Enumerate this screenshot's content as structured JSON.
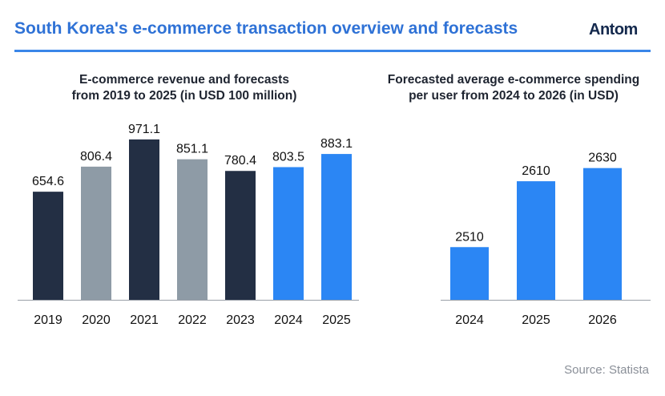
{
  "header": {
    "title": "South Korea's e-commerce transaction overview and forecasts",
    "logo_text": "Antom"
  },
  "chart_data": [
    {
      "type": "bar",
      "title_line1": "E-commerce revenue and forecasts",
      "title_line2": "from 2019 to 2025 (in USD 100 million)",
      "categories": [
        "2019",
        "2020",
        "2021",
        "2022",
        "2023",
        "2024",
        "2025"
      ],
      "values": [
        654.6,
        806.4,
        971.1,
        851.1,
        780.4,
        803.5,
        883.1
      ],
      "value_labels": [
        "654.6",
        "806.4",
        "971.1",
        "851.1",
        "780.4",
        "803.5",
        "883.1"
      ],
      "colors": [
        "#232f44",
        "#8e9ba6",
        "#232f44",
        "#8e9ba6",
        "#232f44",
        "#2b86f4",
        "#2b86f4"
      ],
      "ylim": [
        0,
        1000
      ]
    },
    {
      "type": "bar",
      "title_line1": "Forecasted average e-commerce spending",
      "title_line2": "per user from 2024 to 2026 (in USD)",
      "categories": [
        "2024",
        "2025",
        "2026"
      ],
      "values": [
        2510,
        2610,
        2630
      ],
      "value_labels": [
        "2510",
        "2610",
        "2630"
      ],
      "colors": [
        "#2b86f4",
        "#2b86f4",
        "#2b86f4"
      ],
      "ylim": [
        2430,
        2660
      ]
    }
  ],
  "source": "Source: Statista"
}
